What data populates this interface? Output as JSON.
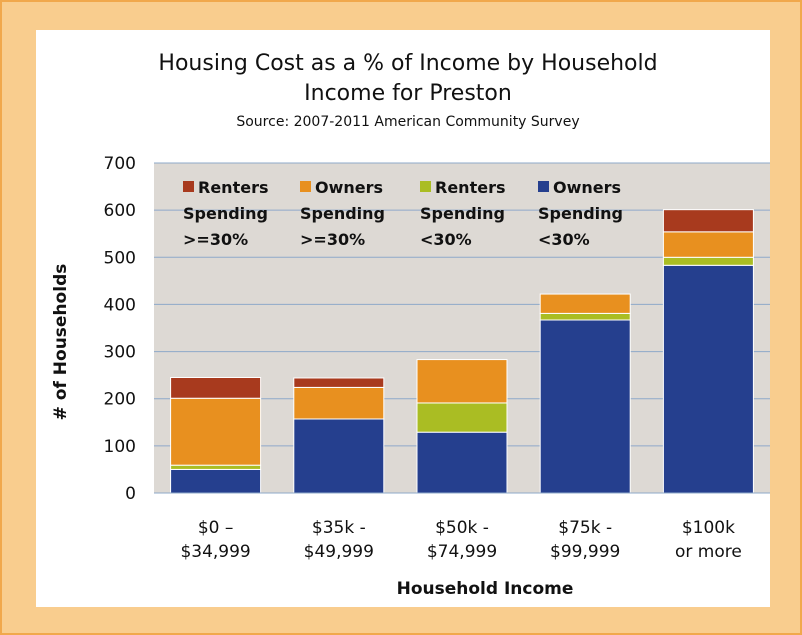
{
  "chart_data": {
    "type": "bar",
    "stacked": true,
    "title_lines": [
      "Housing Cost as a % of Income by Household",
      "Income for Preston"
    ],
    "subtitle": "Source: 2007-2011 American Community Survey",
    "xlabel": "Household Income",
    "ylabel": "# of Households",
    "ylim": [
      0,
      700
    ],
    "yticks": [
      0,
      100,
      200,
      300,
      400,
      500,
      600,
      700
    ],
    "grid": true,
    "legend_position": "top-left",
    "categories": [
      [
        "$0 –",
        "$34,999"
      ],
      [
        "$35k -",
        "$49,999"
      ],
      [
        "$50k -",
        "$74,999"
      ],
      [
        "$75k -",
        "$99,999"
      ],
      [
        "$100k",
        "or more"
      ]
    ],
    "series": [
      {
        "name_lines": [
          "Owners",
          "Spending",
          "<30%"
        ],
        "color": "#253f8e",
        "values": [
          50,
          157,
          129,
          367,
          483
        ]
      },
      {
        "name_lines": [
          "Renters",
          "Spending",
          "<30%"
        ],
        "color": "#aabd23",
        "values": [
          9,
          0,
          62,
          14,
          17
        ]
      },
      {
        "name_lines": [
          "Owners",
          "Spending",
          ">=30%"
        ],
        "color": "#e8901f",
        "values": [
          142,
          67,
          92,
          41,
          54
        ]
      },
      {
        "name_lines": [
          "Renters",
          "Spending",
          ">=30%"
        ],
        "color": "#a83a1e",
        "values": [
          44,
          20,
          0,
          0,
          47
        ]
      }
    ],
    "legend_order": [
      3,
      2,
      1,
      0
    ]
  }
}
